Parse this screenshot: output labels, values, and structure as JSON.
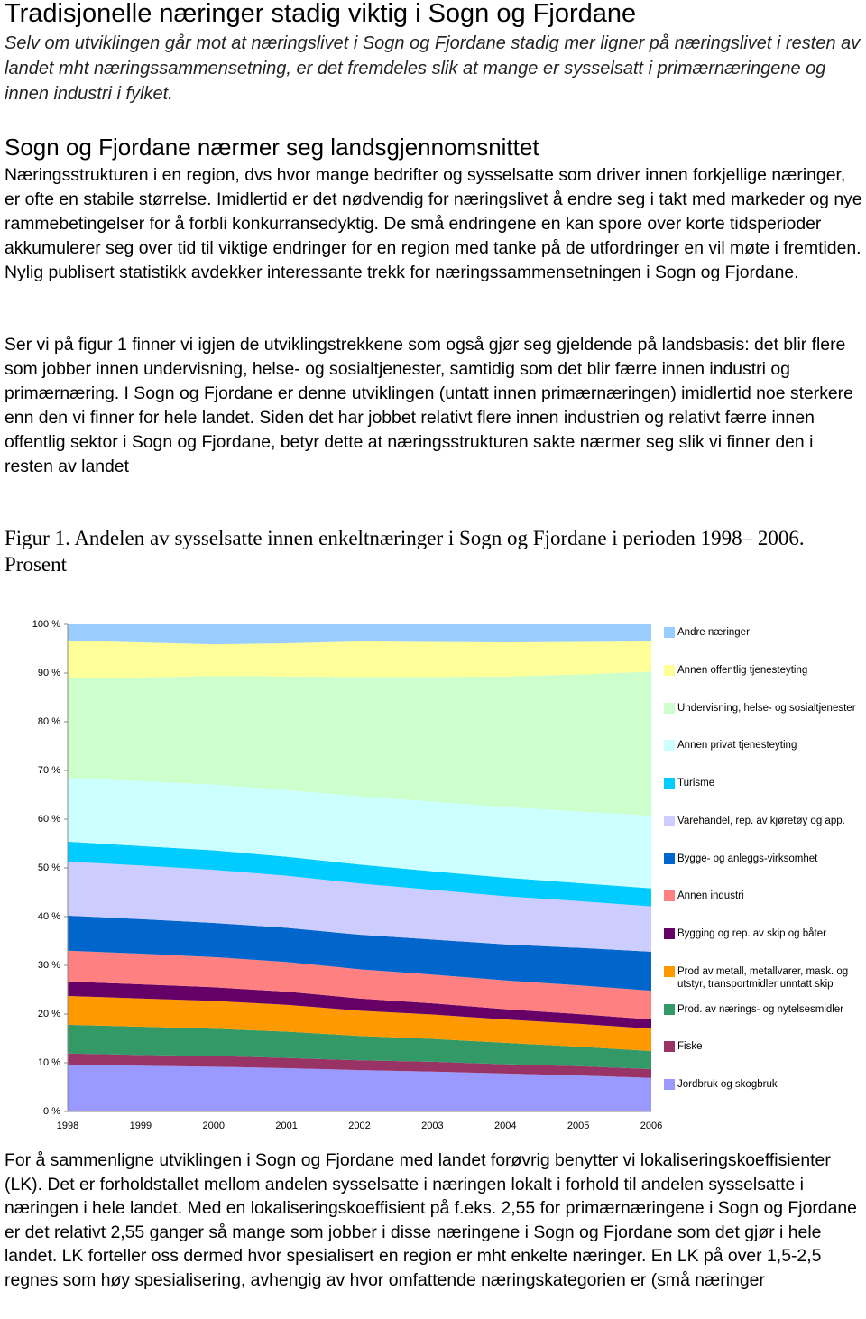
{
  "header": {
    "title": "Tradisjonelle næringer stadig viktig i Sogn og Fjordane",
    "subtitle": "Selv om utviklingen går mot at næringslivet i Sogn og Fjordane stadig mer ligner på næringslivet i resten av landet mht næringssammensetning, er det fremdeles slik at mange er sysselsatt i primærnæringene og innen industri i fylket."
  },
  "section": {
    "heading": "Sogn og Fjordane nærmer seg landsgjennomsnittet",
    "paragraphs": [
      "Næringsstrukturen i en region, dvs hvor mange bedrifter og sysselsatte som driver innen forkjellige næringer, er ofte en stabile størrelse. Imidlertid er det nødvendig for næringslivet å endre seg i takt med markeder og nye rammebetingelser for å forbli konkurransedyktig. De små endringene en kan spore over korte tidsperioder akkumulerer seg over tid til viktige endringer for en region med tanke på de utfordringer en vil møte i fremtiden. Nylig publisert statistikk avdekker interessante trekk for næringssammensetningen i Sogn og Fjordane.",
      "Ser vi på figur 1 finner vi igjen de utviklingstrekkene som også gjør seg gjeldende på landsbasis: det blir flere som jobber innen undervisning, helse- og sosialtjenester, samtidig som det blir færre innen industri og primærnæring. I Sogn og Fjordane er denne utviklingen (untatt innen primærnæringen) imidlertid noe sterkere enn den vi finner for hele landet. Siden det har jobbet relativt flere innen industrien og relativt færre innen offentlig sektor i Sogn og Fjordane, betyr dette at næringsstrukturen sakte nærmer seg slik vi finner den i resten av landet"
    ]
  },
  "figure": {
    "caption": "Figur 1. Andelen av sysselsatte innen enkeltnæringer i Sogn og Fjordane i perioden 1998– 2006. Prosent"
  },
  "chart_data": {
    "type": "stacked_area",
    "categories": [
      "1998",
      "1999",
      "2000",
      "2001",
      "2002",
      "2003",
      "2004",
      "2005",
      "2006"
    ],
    "ylim": [
      0,
      100
    ],
    "yticks": [
      {
        "value": 0,
        "label": "0 %"
      },
      {
        "value": 10,
        "label": "10 %"
      },
      {
        "value": 20,
        "label": "20 %"
      },
      {
        "value": 30,
        "label": "30 %"
      },
      {
        "value": 40,
        "label": "40 %"
      },
      {
        "value": 50,
        "label": "50 %"
      },
      {
        "value": 60,
        "label": "60 %"
      },
      {
        "value": 70,
        "label": "70 %"
      },
      {
        "value": 80,
        "label": "80 %"
      },
      {
        "value": 90,
        "label": "90 %"
      },
      {
        "value": 100,
        "label": "100 %"
      }
    ],
    "legend": "right",
    "series": [
      {
        "name": "Andre næringer",
        "color": "#99ccff",
        "values": [
          3.3,
          3.7,
          4.1,
          3.9,
          3.5,
          3.6,
          3.7,
          3.6,
          3.5
        ]
      },
      {
        "name": "Annen offentlig tjenesteyting",
        "color": "#ffff99",
        "values": [
          7.8,
          7.2,
          6.5,
          6.8,
          7.3,
          7.2,
          7.0,
          6.7,
          6.2
        ]
      },
      {
        "name": "Undervisning, helse- og sosialtjenester",
        "color": "#ccffcc",
        "values": [
          20.4,
          21.3,
          22.3,
          23.3,
          24.5,
          25.6,
          26.8,
          28.1,
          29.6
        ]
      },
      {
        "name": "Annen privat tjenesteyting",
        "color": "#ccffff",
        "values": [
          13.1,
          13.3,
          13.5,
          13.7,
          14.0,
          14.3,
          14.5,
          14.7,
          14.9
        ]
      },
      {
        "name": "Turisme",
        "color": "#00ccff",
        "values": [
          4.1,
          4.0,
          4.0,
          3.9,
          3.9,
          3.8,
          3.8,
          3.7,
          3.7
        ]
      },
      {
        "name": "Varehandel, rep. av kjøretøy og app.",
        "color": "#ccccff",
        "values": [
          11.1,
          11.0,
          10.9,
          10.7,
          10.5,
          10.2,
          9.9,
          9.6,
          9.3
        ]
      },
      {
        "name": "Bygge- og anleggs-virksomhet",
        "color": "#0066cc",
        "values": [
          7.2,
          7.1,
          7.0,
          7.0,
          7.1,
          7.2,
          7.4,
          7.7,
          8.0
        ]
      },
      {
        "name": "Annen industri",
        "color": "#ff8080",
        "values": [
          6.3,
          6.3,
          6.2,
          6.1,
          6.0,
          5.9,
          5.9,
          5.9,
          5.9
        ]
      },
      {
        "name": "Bygging og rep. av skip og båter",
        "color": "#660066",
        "values": [
          3.0,
          2.9,
          2.8,
          2.7,
          2.5,
          2.3,
          2.1,
          2.0,
          1.9
        ]
      },
      {
        "name": "Prod av metall, metallvarer, mask. og utstyr, transportmidler unntatt skip",
        "color": "#ff9900",
        "values": [
          5.9,
          5.8,
          5.7,
          5.5,
          5.2,
          5.0,
          4.8,
          4.7,
          4.6
        ]
      },
      {
        "name": "Prod. av nærings- og nytelsesmidler",
        "color": "#339966",
        "values": [
          5.9,
          5.8,
          5.6,
          5.4,
          5.0,
          4.7,
          4.4,
          4.0,
          3.7
        ]
      },
      {
        "name": "Fiske",
        "color": "#993366",
        "values": [
          2.3,
          2.2,
          2.2,
          2.1,
          2.0,
          2.0,
          1.9,
          1.9,
          1.8
        ]
      },
      {
        "name": "Jordbruk og skogbruk",
        "color": "#9999ff",
        "values": [
          9.6,
          9.4,
          9.2,
          8.9,
          8.5,
          8.2,
          7.8,
          7.4,
          6.9
        ]
      }
    ]
  },
  "closing": {
    "paragraph": "For å sammenligne utviklingen i Sogn og Fjordane med landet forøvrig benytter vi lokaliseringskoeffisienter (LK). Det er forholdstallet mellom andelen sysselsatte i næringen lokalt i forhold til andelen sysselsatte i næringen i hele landet. Med en lokaliseringskoeffisient på f.eks. 2,55 for primærnæringene i Sogn og Fjordane er det relativt 2,55 ganger så mange som jobber i disse næringene i Sogn og Fjordane som det gjør i hele landet. LK forteller oss dermed hvor spesialisert en region er mht enkelte næringer. En LK på over 1,5-2,5 regnes som høy spesialisering, avhengig av hvor omfattende næringskategorien er (små næringer"
  }
}
